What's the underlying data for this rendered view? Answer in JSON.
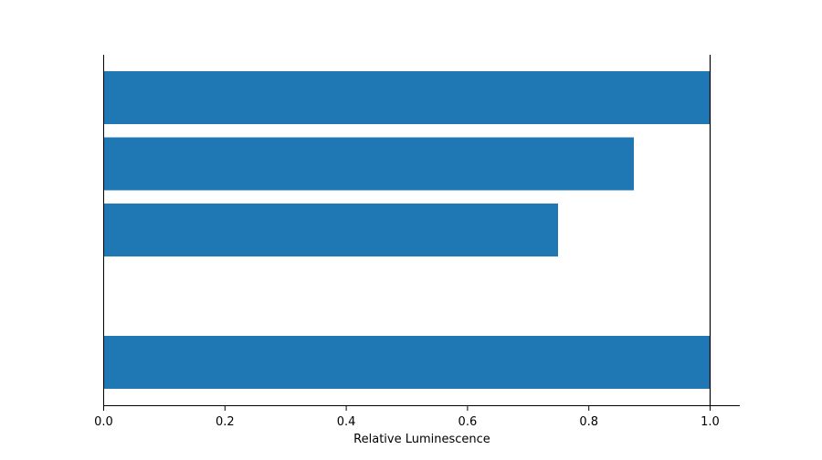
{
  "chart_data": {
    "type": "bar",
    "orientation": "horizontal",
    "xlabel": "Relative Luminescence",
    "ylabel": "",
    "xlim": [
      0,
      1.05
    ],
    "x_ticks": [
      "0.0",
      "0.2",
      "0.4",
      "0.6",
      "0.8",
      "1.0"
    ],
    "x_tick_values": [
      0,
      0.2,
      0.4,
      0.6,
      0.8,
      1.0
    ],
    "reference_line": 1.0,
    "bars": [
      {
        "slot": 0,
        "value": 1.0
      },
      {
        "slot": 1,
        "value": 0.875
      },
      {
        "slot": 2,
        "value": 0.75
      },
      {
        "slot": 4,
        "value": 1.0
      }
    ],
    "grid": false,
    "color": "#1f77b4"
  }
}
